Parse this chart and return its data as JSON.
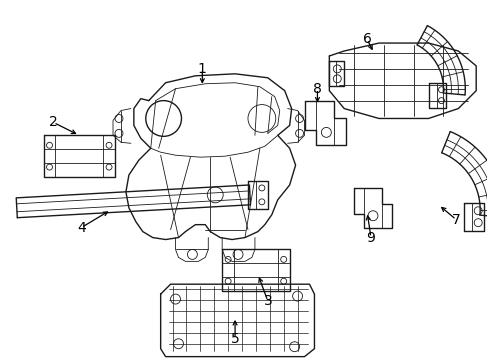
{
  "background_color": "#ffffff",
  "line_color": "#1a1a1a",
  "text_color": "#000000",
  "fig_width": 4.89,
  "fig_height": 3.6,
  "dpi": 100,
  "font_size": 10
}
